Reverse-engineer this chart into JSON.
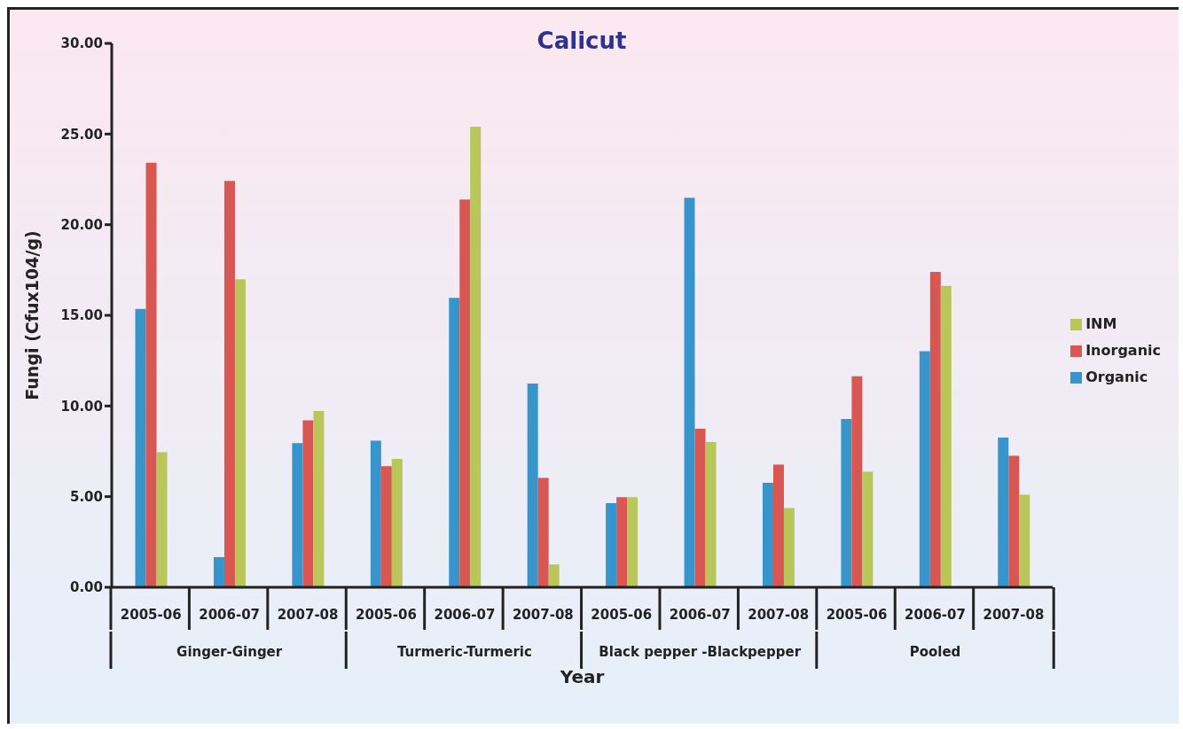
{
  "chart_data": {
    "type": "bar",
    "title": "Calicut",
    "xlabel": "Year",
    "ylabel": "Fungi (Cfux104/g)",
    "categories": [
      "2005-06",
      "2006-07",
      "2007-08",
      "2005-06",
      "2006-07",
      "2007-08",
      "2005-06",
      "2006-07",
      "2007-08",
      "2005-06",
      "2006-07",
      "2007-08"
    ],
    "annotations": [
      "Ginger-Ginger",
      "Turmeric-Turmeric",
      "Black pepper -Blackpepper",
      "Pooled"
    ],
    "series": [
      {
        "name": "Organic",
        "color": "#3795cb",
        "values": [
          15.35,
          1.66,
          7.95,
          8.09,
          15.97,
          11.24,
          4.64,
          21.49,
          5.76,
          9.28,
          13.02,
          8.26
        ]
      },
      {
        "name": "Inorganic",
        "color": "#d95752",
        "values": [
          23.42,
          22.41,
          9.21,
          6.68,
          21.39,
          6.04,
          4.97,
          8.74,
          6.77,
          11.64,
          17.39,
          7.25
        ]
      },
      {
        "name": "INM",
        "color": "#b8c65a",
        "values": [
          7.45,
          16.99,
          9.72,
          7.08,
          25.41,
          1.26,
          4.97,
          8.01,
          4.37,
          6.38,
          16.63,
          5.11
        ]
      }
    ],
    "ylim": [
      0,
      30
    ],
    "yticks": [
      {
        "value": 0,
        "label": "0.00"
      },
      {
        "value": 5,
        "label": "5.00"
      },
      {
        "value": 10,
        "label": "10.00"
      },
      {
        "value": 15,
        "label": "15.00"
      },
      {
        "value": 20,
        "label": "20.00"
      },
      {
        "value": 25,
        "label": "25.00"
      },
      {
        "value": 30,
        "label": "30.00"
      }
    ],
    "grid": false,
    "legend": "right"
  }
}
